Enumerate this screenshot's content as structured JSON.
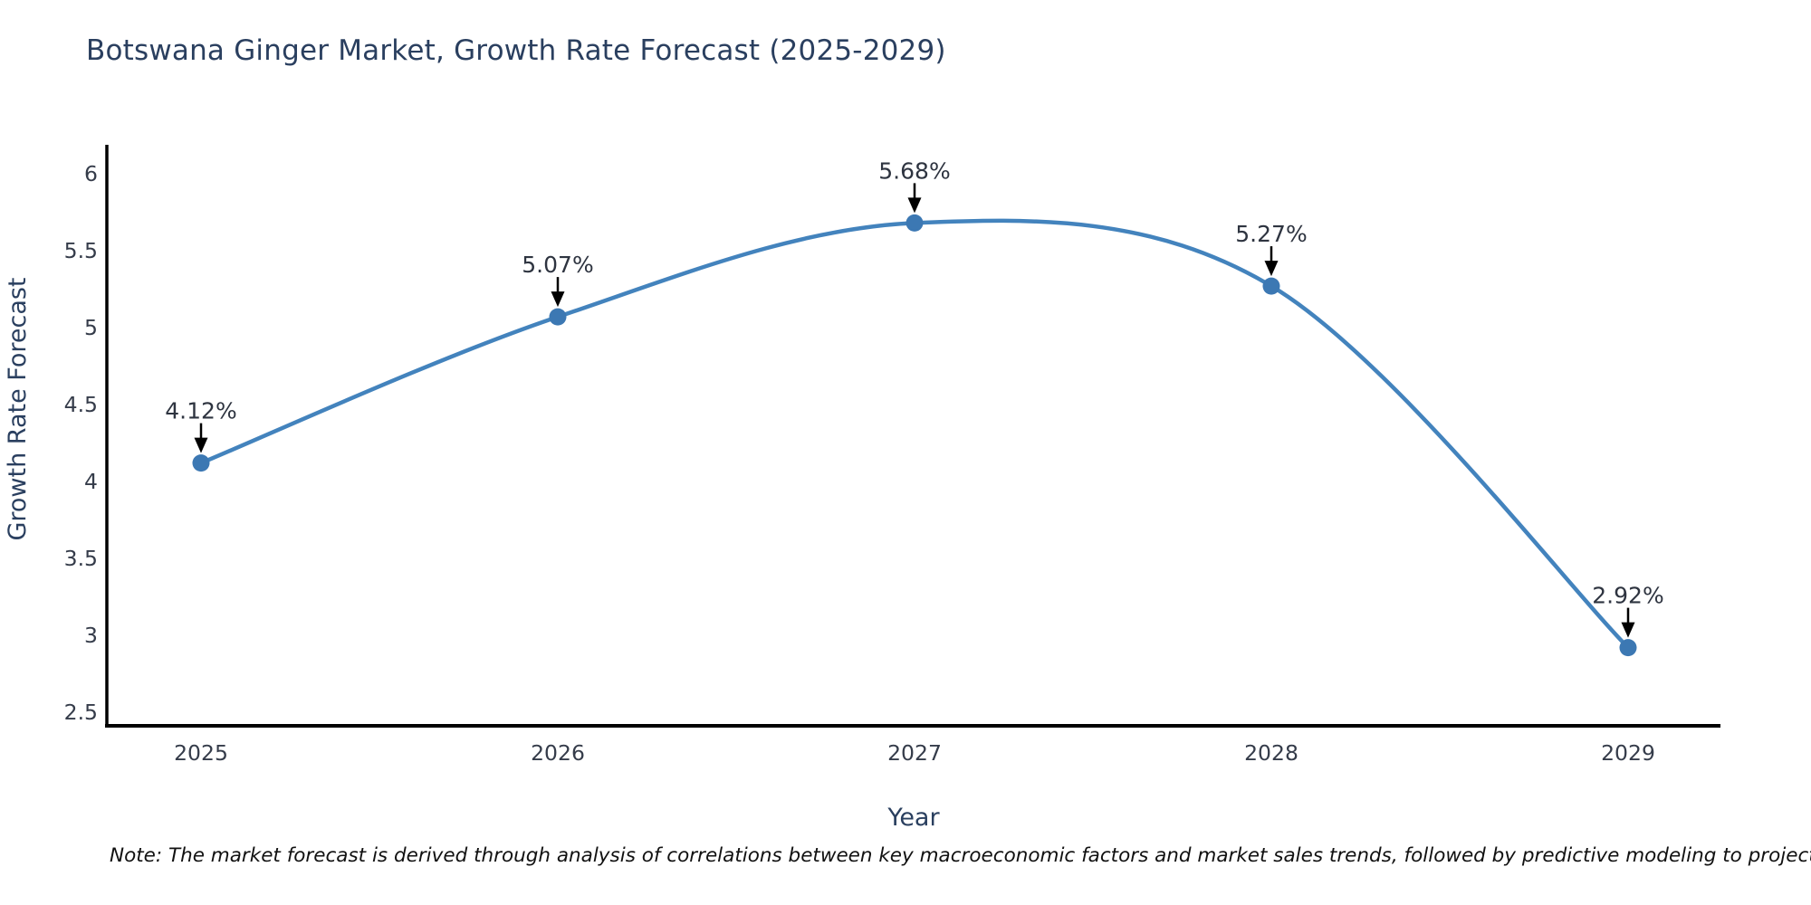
{
  "page": {
    "title": "Botswana Ginger Market, Growth Rate Forecast (2025-2029)",
    "note": "Note: The market forecast is derived through analysis of correlations between key macroeconomic factors and market sales trends, followed by predictive modeling to project future sales"
  },
  "colors": {
    "title": "#2a3f5f",
    "axis_title": "#2a3f5f",
    "tick": "#353c4a",
    "annotation_text": "#2e3440",
    "line": "#4383bd",
    "marker": "#3c78b3",
    "arrow": "#000000",
    "axis_line": "#000000",
    "note": "#111111"
  },
  "chart_data": {
    "type": "line",
    "title": "Botswana Ginger Market, Growth Rate Forecast (2025-2029)",
    "x": [
      2025,
      2026,
      2027,
      2028,
      2029
    ],
    "values": [
      4.12,
      5.07,
      5.68,
      5.27,
      2.92
    ],
    "point_labels": [
      "4.12%",
      "5.07%",
      "5.68%",
      "5.27%",
      "2.92%"
    ],
    "xlabel": "Year",
    "ylabel": "Growth Rate Forecast",
    "yticks": [
      2.5,
      3,
      3.5,
      4,
      4.5,
      5,
      5.5,
      6
    ],
    "ylim": [
      2.4,
      6.2
    ],
    "xlim": [
      2024.74,
      2029.26
    ],
    "grid": false,
    "legend": "none",
    "curve": "spline",
    "markers": true,
    "annotations": "value labels with downward arrows above each point"
  }
}
